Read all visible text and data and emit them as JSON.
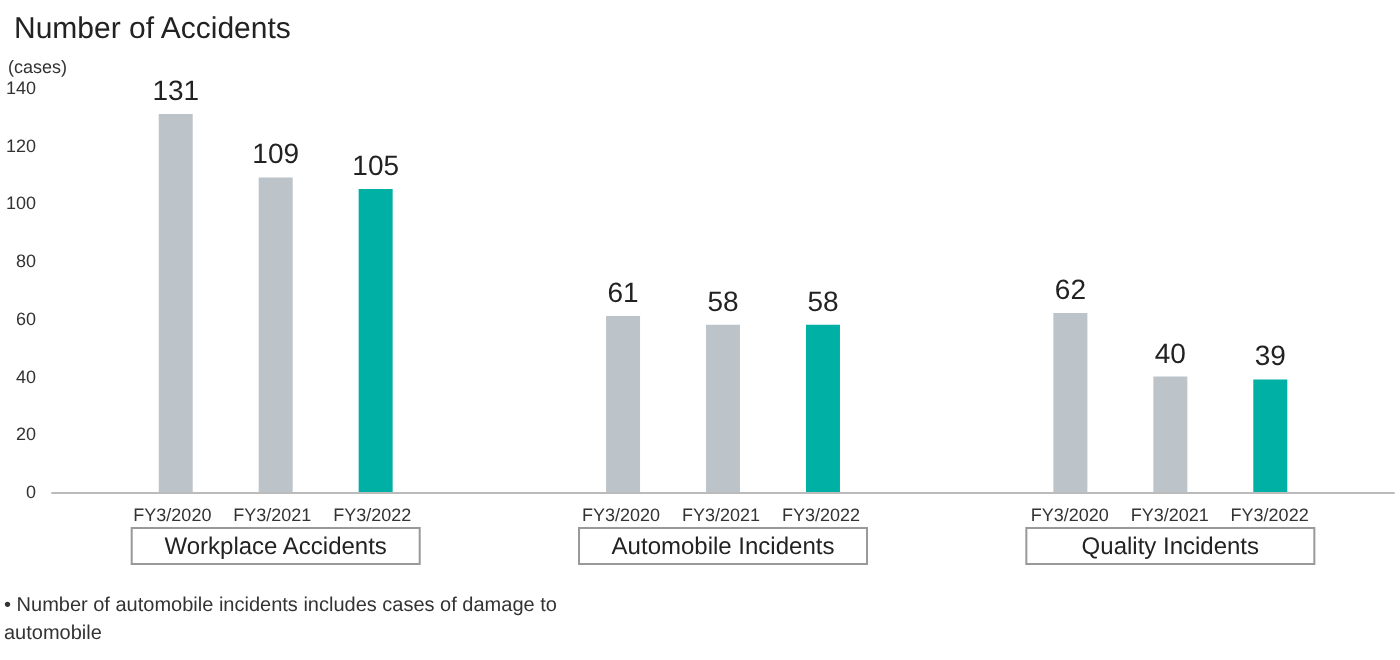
{
  "chart_data": {
    "type": "bar",
    "title": "Number of Accidents",
    "ylabel": "(cases)",
    "categories": [
      "Workplace Accidents",
      "Automobile Incidents",
      "Quality Incidents"
    ],
    "series": [
      {
        "name": "FY3/2020",
        "color": "#bcc4ca",
        "values": [
          131,
          61,
          62
        ]
      },
      {
        "name": "FY3/2021",
        "color": "#bcc4ca",
        "values": [
          109,
          58,
          40
        ]
      },
      {
        "name": "FY3/2022",
        "color": "#00b0a5",
        "values": [
          105,
          58,
          39
        ]
      }
    ],
    "ylim": [
      0,
      140
    ],
    "yticks": [
      0,
      20,
      40,
      60,
      80,
      100,
      120,
      140
    ],
    "grid": false,
    "data_labels": true,
    "annotations": [
      "• Number of automobile incidents includes cases of damage to automobile"
    ]
  }
}
